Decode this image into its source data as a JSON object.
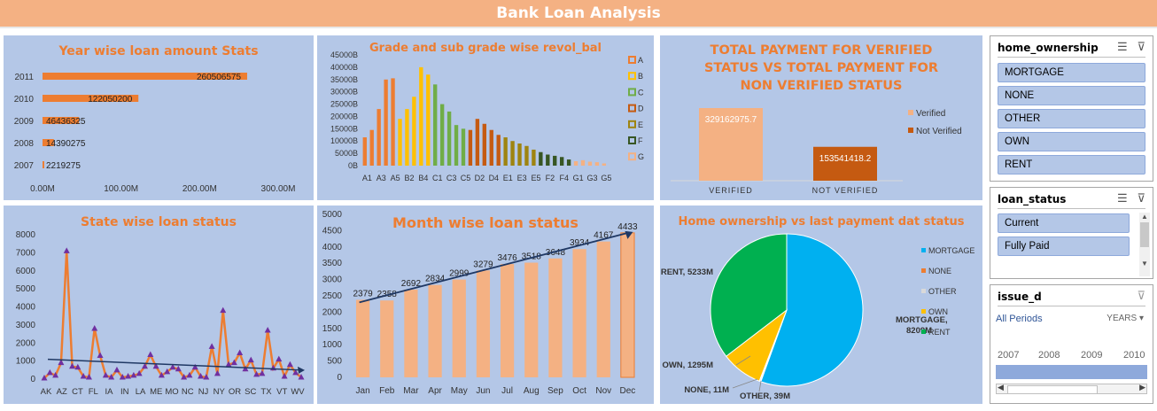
{
  "title": "Bank Loan Analysis",
  "colors": {
    "accent": "#ed7d31",
    "panel_bg": "#b4c7e7",
    "header_bg": "#f4b183"
  },
  "year_panel": {
    "title": "Year wise loan amount Stats",
    "chart_data": {
      "type": "bar",
      "orientation": "horizontal",
      "categories": [
        "2011",
        "2010",
        "2009",
        "2008",
        "2007"
      ],
      "values": [
        260506575,
        122050200,
        46436325,
        14390275,
        2219275
      ],
      "value_labels": [
        "260506575",
        "122050200",
        "46436325",
        "14390275",
        "2219275"
      ],
      "x_ticks": [
        "0.00M",
        "100.00M",
        "200.00M",
        "300.00M"
      ],
      "xlim": [
        0,
        300000000
      ],
      "color": "#ed7d31"
    }
  },
  "grade_panel": {
    "title": "Grade and sub grade wise revol_bal",
    "chart_data": {
      "type": "bar",
      "x_labels": [
        "A1",
        "A3",
        "A5",
        "B2",
        "B4",
        "C1",
        "C3",
        "C5",
        "D2",
        "D4",
        "E1",
        "E3",
        "E5",
        "F2",
        "F4",
        "G1",
        "G3",
        "G5"
      ],
      "y_ticks": [
        "0B",
        "5000B",
        "10000B",
        "15000B",
        "20000B",
        "25000B",
        "30000B",
        "35000B",
        "40000B",
        "45000B"
      ],
      "ylim": [
        0,
        45000
      ],
      "series": [
        {
          "name": "A",
          "color": "#ed7d31",
          "values": [
            11500,
            14500,
            23000,
            35000,
            35500
          ]
        },
        {
          "name": "B",
          "color": "#ffc000",
          "values": [
            19000,
            23000,
            28000,
            40000,
            37000
          ]
        },
        {
          "name": "C",
          "color": "#70ad47",
          "values": [
            33000,
            25000,
            22000,
            16500,
            15000
          ]
        },
        {
          "name": "D",
          "color": "#c55a11",
          "values": [
            14500,
            19000,
            17000,
            14500,
            12500
          ]
        },
        {
          "name": "E",
          "color": "#9e8410",
          "values": [
            11500,
            10000,
            9000,
            8000,
            6500
          ]
        },
        {
          "name": "F",
          "color": "#375623",
          "values": [
            5500,
            4500,
            4000,
            3500,
            2500
          ]
        },
        {
          "name": "G",
          "color": "#f4b183",
          "values": [
            1800,
            2200,
            1600,
            1400,
            900
          ]
        }
      ]
    }
  },
  "verified_panel": {
    "title_lines": [
      "TOTAL PAYMENT FOR VERIFIED",
      "STATUS VS TOTAL PAYMENT FOR",
      "NON VERIFIED STATUS"
    ],
    "chart_data": {
      "type": "bar",
      "categories": [
        "VERIFIED",
        "NOT VERIFIED"
      ],
      "values": [
        329162975.7,
        153541418.2
      ],
      "value_labels": [
        "329162975.7",
        "153541418.2"
      ],
      "colors": [
        "#f4b183",
        "#c55a11"
      ],
      "legend": [
        "Verified",
        "Not Verified"
      ]
    }
  },
  "state_panel": {
    "title": "State wise loan status",
    "chart_data": {
      "type": "line",
      "x_labels": [
        "AK",
        "AZ",
        "CT",
        "FL",
        "IA",
        "IN",
        "LA",
        "ME",
        "MO",
        "NC",
        "NJ",
        "NY",
        "OR",
        "SC",
        "TX",
        "VT",
        "WV"
      ],
      "values": [
        50,
        350,
        200,
        900,
        7100,
        700,
        650,
        150,
        100,
        2800,
        1300,
        200,
        100,
        500,
        100,
        150,
        200,
        300,
        700,
        1350,
        700,
        200,
        400,
        650,
        550,
        100,
        200,
        650,
        150,
        100,
        1800,
        300,
        3800,
        800,
        900,
        1450,
        550,
        1050,
        250,
        300,
        2700,
        600,
        1100,
        150,
        800,
        350,
        100
      ],
      "y_ticks": [
        "0",
        "1000",
        "2000",
        "3000",
        "4000",
        "5000",
        "6000",
        "7000",
        "8000"
      ],
      "ylim": [
        0,
        8000
      ],
      "trend": [
        1100,
        500
      ]
    }
  },
  "month_panel": {
    "title": "Month wise loan status",
    "chart_data": {
      "type": "bar",
      "categories": [
        "Jan",
        "Feb",
        "Mar",
        "Apr",
        "May",
        "Jun",
        "Jul",
        "Aug",
        "Sep",
        "Oct",
        "Nov",
        "Dec"
      ],
      "values": [
        2379,
        2358,
        2692,
        2834,
        2999,
        3279,
        3476,
        3518,
        3648,
        3934,
        4167,
        4433
      ],
      "value_labels": [
        "2379",
        "2358",
        "2692",
        "2834",
        "2999",
        "3279",
        "3476",
        "3518",
        "3648",
        "3934",
        "4167",
        "4433"
      ],
      "y_ticks": [
        "0",
        "500",
        "1000",
        "1500",
        "2000",
        "2500",
        "3000",
        "3500",
        "4000",
        "4500",
        "5000"
      ],
      "ylim": [
        0,
        5000
      ],
      "color": "#f4b183"
    }
  },
  "home_panel": {
    "title": "Home ownership vs last payment dat status",
    "chart_data": {
      "type": "pie",
      "labels": [
        "MORTGAGE",
        "NONE",
        "OTHER",
        "OWN",
        "RENT"
      ],
      "values": [
        8209,
        11,
        39,
        1295,
        5233
      ],
      "colors": [
        "#00b0f0",
        "#ed7d31",
        "#d9d9d9",
        "#ffc000",
        "#00b050"
      ],
      "data_labels": [
        "MORTGAGE,\n8209M",
        "NONE, 11M",
        "OTHER, 39M",
        "OWN, 1295M",
        "RENT, 5233M"
      ]
    }
  },
  "slicers": {
    "home_ownership": {
      "title": "home_ownership",
      "items": [
        "MORTGAGE",
        "NONE",
        "OTHER",
        "OWN",
        "RENT"
      ]
    },
    "loan_status": {
      "title": "loan_status",
      "items": [
        "Current",
        "Fully Paid"
      ]
    },
    "issue_d": {
      "title": "issue_d",
      "period": "All Periods",
      "unit": "YEARS",
      "years": [
        "2007",
        "2008",
        "2009",
        "2010"
      ]
    }
  }
}
